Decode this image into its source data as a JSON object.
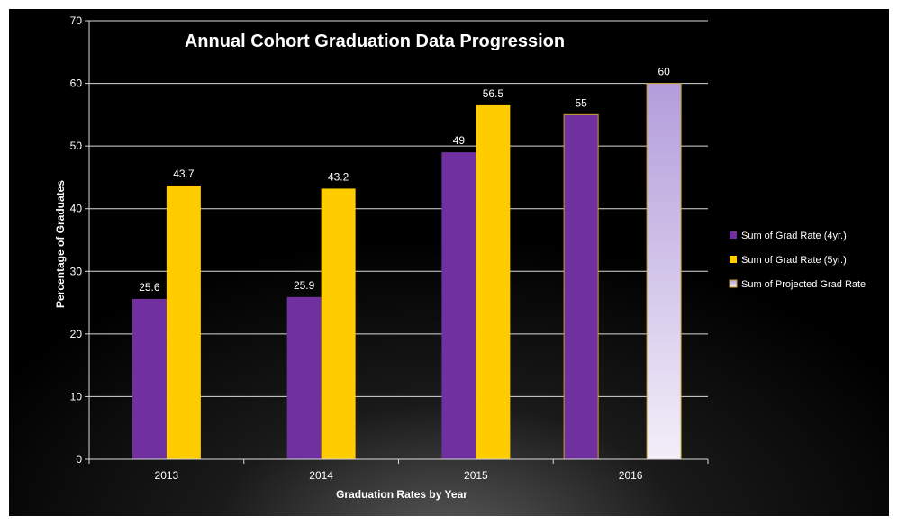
{
  "chart_data": {
    "type": "bar",
    "title": "Annual Cohort Graduation Data Progression",
    "xlabel": "Graduation Rates by Year",
    "ylabel": "Percentage of Graduates",
    "ylim": [
      0,
      70
    ],
    "yticks": [
      "0",
      "10",
      "20",
      "30",
      "40",
      "50",
      "60",
      "70"
    ],
    "categories": [
      "2013",
      "2014",
      "2015",
      "2016"
    ],
    "series": [
      {
        "name": "Sum of Grad Rate (4yr.)",
        "color": "#7030A0",
        "values": [
          25.6,
          25.9,
          49,
          55
        ],
        "labels": [
          "25.6",
          "25.9",
          "49",
          "55"
        ]
      },
      {
        "name": "Sum of Grad Rate (5yr.)",
        "color": "#FFCC00",
        "values": [
          43.7,
          43.2,
          56.5,
          null
        ],
        "labels": [
          "43.7",
          "43.2",
          "56.5",
          ""
        ]
      },
      {
        "name": "Sum of Projected Grad Rate",
        "color": "#B39DDB",
        "gradient_to": "#F2EEF8",
        "values": [
          null,
          null,
          null,
          60
        ],
        "labels": [
          "",
          "",
          "",
          "60"
        ]
      }
    ],
    "grid": true,
    "legend_position": "right",
    "background": "#000000"
  }
}
